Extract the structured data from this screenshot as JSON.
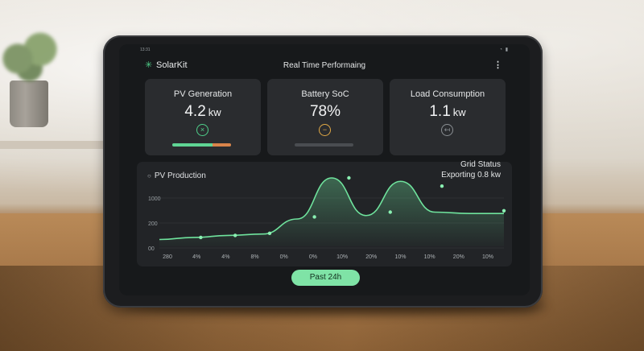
{
  "status_bar": {
    "time": "13:31",
    "icons": [
      "wifi-icon",
      "battery-icon"
    ]
  },
  "app": {
    "name": "SolarKit",
    "logo_icon": "sun-icon",
    "title": "Real Time Performaing",
    "menu_icon": "more-vertical-icon"
  },
  "cards": [
    {
      "title": "PV Generation",
      "value": "4.2",
      "unit": "kw",
      "icon": "close-circle-icon",
      "bar": {
        "green_fraction": 0.69,
        "orange_fraction": 0.31
      }
    },
    {
      "title": "Battery SoC",
      "value": "78%",
      "unit": "",
      "icon": "minus-circle-icon",
      "bar": {
        "green_fraction": 0,
        "orange_fraction": 0
      }
    },
    {
      "title": "Load Consumption",
      "value": "1.1",
      "unit": "kw",
      "icon": "plug-circle-icon"
    }
  ],
  "chart_panel": {
    "title": "PV Production",
    "grid_status_label": "Grid Status",
    "grid_status_value": "Exporting 0.8 kw"
  },
  "chart_data": {
    "type": "line",
    "title": "PV Production",
    "xlabel": "",
    "ylabel": "",
    "y_ticks": [
      "1000",
      "200",
      "00"
    ],
    "x_ticks": [
      "280",
      "4%",
      "4%",
      "8%",
      "0%",
      "0%",
      "10%",
      "20%",
      "10%",
      "10%",
      "20%",
      "10%"
    ],
    "series": [
      {
        "x": [
          0,
          1,
          2,
          3,
          4,
          5,
          6,
          7,
          8,
          9,
          10
        ],
        "y": [
          0.1,
          0.13,
          0.16,
          0.18,
          0.4,
          1.0,
          0.45,
          0.95,
          0.5,
          0.48,
          0.48
        ],
        "marker_points": [
          [
            1.2,
            0.13
          ],
          [
            2.2,
            0.16
          ],
          [
            3.2,
            0.19
          ],
          [
            4.5,
            0.43
          ],
          [
            5.5,
            1.0
          ],
          [
            6.7,
            0.5
          ],
          [
            8.2,
            0.88
          ],
          [
            10.0,
            0.52
          ]
        ]
      }
    ],
    "grid": true,
    "line_color": "#6fe39d"
  },
  "range_button": {
    "label": "Past 24h"
  }
}
